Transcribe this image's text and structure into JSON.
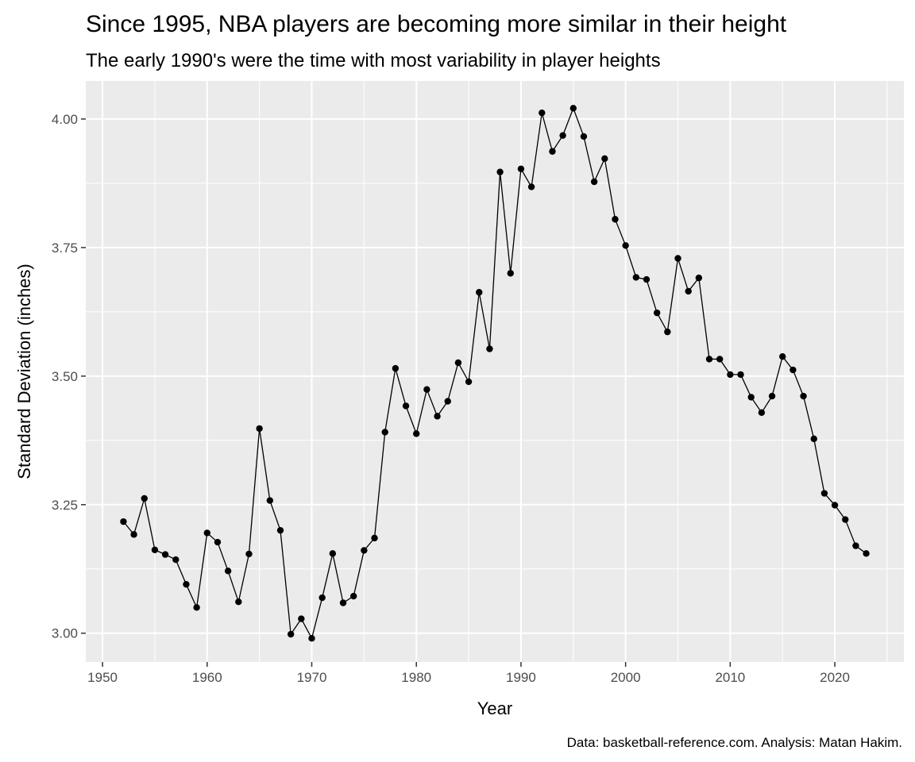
{
  "chart_data": {
    "type": "line",
    "title": "Since 1995, NBA players are becoming more similar in their height",
    "subtitle": "The early 1990's were the time with most variability in player heights",
    "caption": "Data: basketball-reference.com. Analysis: Matan Hakim.",
    "xlabel": "Year",
    "ylabel": "Standard Deviation (inches)",
    "xlim": [
      1948.4,
      1926.6
    ],
    "ylim": [
      2.944,
      4.074
    ],
    "x_ticks": [
      1950,
      1960,
      1970,
      1980,
      1990,
      2000,
      2010,
      2020
    ],
    "y_ticks": [
      3.0,
      3.25,
      3.5,
      3.75,
      4.0
    ],
    "y_tick_labels": [
      "3.00",
      "3.25",
      "3.50",
      "3.75",
      "4.00"
    ],
    "grid": true,
    "line_color": "#000000",
    "panel_color": "#ebebeb",
    "x": [
      1952,
      1953,
      1954,
      1955,
      1956,
      1957,
      1958,
      1959,
      1960,
      1961,
      1962,
      1963,
      1964,
      1965,
      1966,
      1967,
      1968,
      1969,
      1970,
      1971,
      1972,
      1973,
      1974,
      1975,
      1976,
      1977,
      1978,
      1979,
      1980,
      1981,
      1982,
      1983,
      1984,
      1985,
      1986,
      1987,
      1988,
      1989,
      1990,
      1991,
      1992,
      1993,
      1994,
      1995,
      1996,
      1997,
      1998,
      1999,
      2000,
      2001,
      2002,
      2003,
      2004,
      2005,
      2006,
      2007,
      2008,
      2009,
      2010,
      2011,
      2012,
      2013,
      2014,
      2015,
      2016,
      2017,
      2018,
      2019,
      2020,
      2021,
      2022,
      2023
    ],
    "y": [
      3.217,
      3.192,
      3.262,
      3.162,
      3.153,
      3.143,
      3.095,
      3.05,
      3.195,
      3.177,
      3.121,
      3.061,
      3.154,
      3.398,
      3.258,
      3.2,
      2.998,
      3.028,
      2.99,
      3.069,
      3.155,
      3.059,
      3.072,
      3.161,
      3.185,
      3.391,
      3.515,
      3.442,
      3.388,
      3.474,
      3.422,
      3.451,
      3.526,
      3.489,
      3.663,
      3.553,
      3.897,
      3.7,
      3.903,
      3.868,
      4.012,
      3.937,
      3.968,
      4.021,
      3.966,
      3.878,
      3.923,
      3.805,
      3.754,
      3.692,
      3.688,
      3.623,
      3.586,
      3.729,
      3.665,
      3.691,
      3.533,
      3.533,
      3.503,
      3.503,
      3.459,
      3.429,
      3.461,
      3.538,
      3.512,
      3.461,
      3.378,
      3.272,
      3.249,
      3.221,
      3.17,
      3.155
    ]
  }
}
